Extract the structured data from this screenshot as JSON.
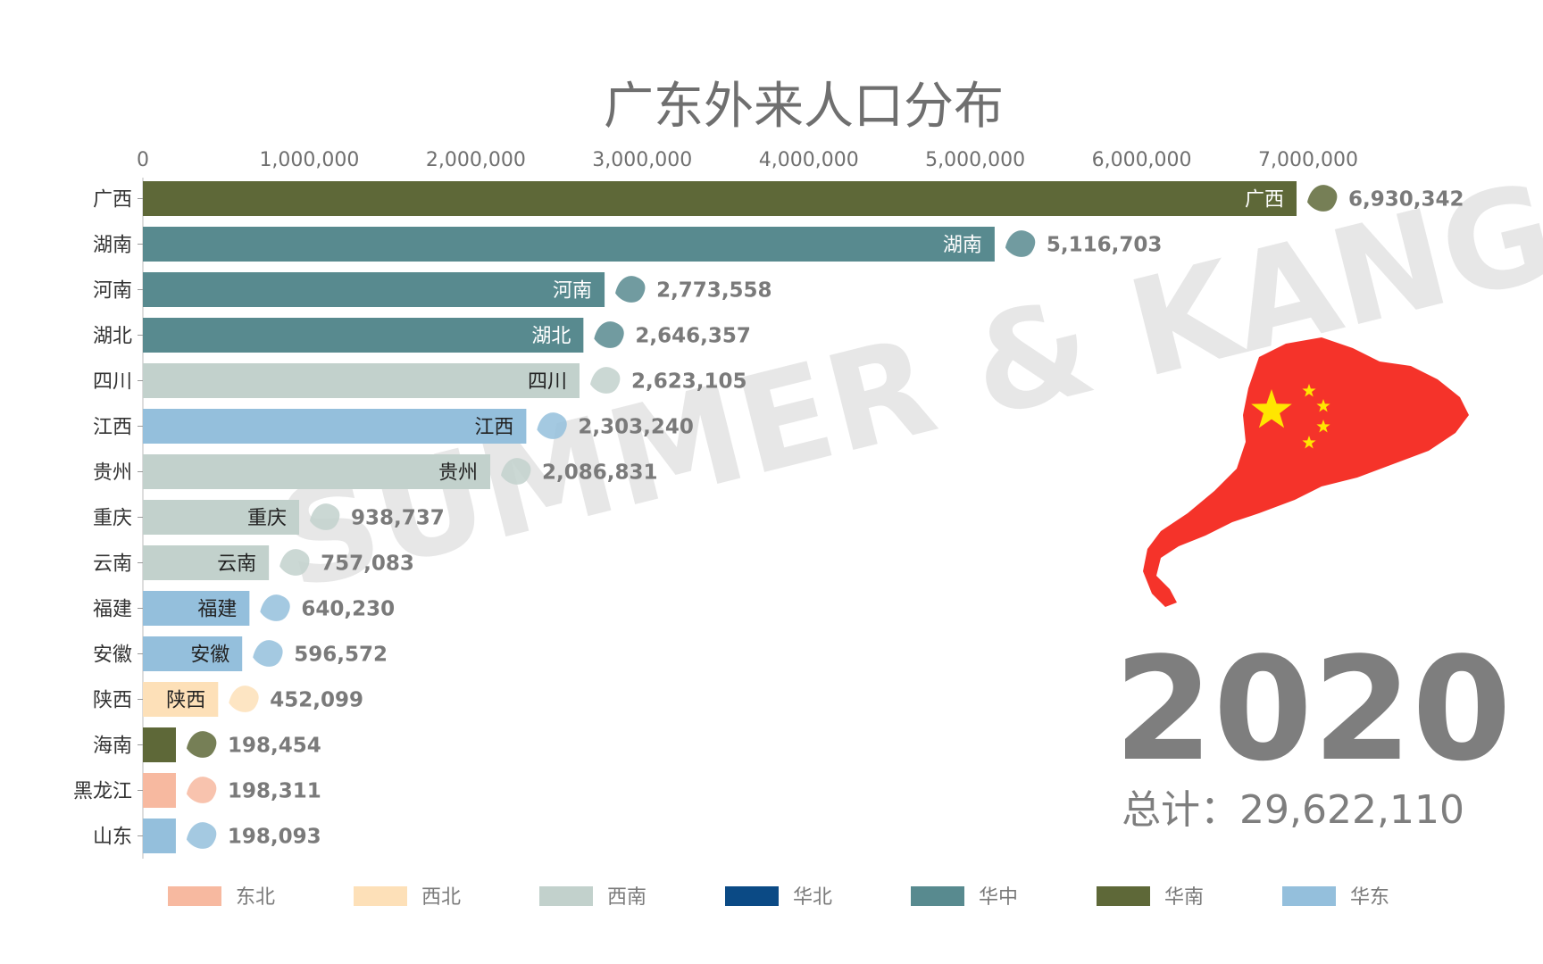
{
  "chart_data": {
    "type": "bar",
    "orientation": "horizontal",
    "title": "广东外来人口分布",
    "x_ticks": [
      "0",
      "1,000,000",
      "2,000,000",
      "3,000,000",
      "4,000,000",
      "5,000,000",
      "6,000,000",
      "7,000,000"
    ],
    "xlim": [
      0,
      7000000
    ],
    "grid": false,
    "categories": [
      "广西",
      "湖南",
      "河南",
      "湖北",
      "四川",
      "江西",
      "贵州",
      "重庆",
      "云南",
      "福建",
      "安徽",
      "陕西",
      "海南",
      "黑龙江",
      "山东"
    ],
    "values": [
      6930342,
      5116703,
      2773558,
      2646357,
      2623105,
      2303240,
      2086831,
      938737,
      757083,
      640230,
      596572,
      452099,
      198454,
      198311,
      198093
    ],
    "value_labels": [
      "6,930,342",
      "5,116,703",
      "2,773,558",
      "2,646,357",
      "2,623,105",
      "2,303,240",
      "2,086,831",
      "938,737",
      "757,083",
      "640,230",
      "596,572",
      "452,099",
      "198,454",
      "198,311",
      "198,093"
    ],
    "regions": [
      "华南",
      "华中",
      "华中",
      "华中",
      "西南",
      "华东",
      "西南",
      "西南",
      "西南",
      "华东",
      "华东",
      "西北",
      "华南",
      "东北",
      "华东"
    ],
    "legend": [
      {
        "name": "东北",
        "color": "#f7b9a0"
      },
      {
        "name": "西北",
        "color": "#fde0b8"
      },
      {
        "name": "西南",
        "color": "#c2d1cc"
      },
      {
        "name": "华北",
        "color": "#0b4a85"
      },
      {
        "name": "华中",
        "color": "#588a8f"
      },
      {
        "name": "华南",
        "color": "#5e6838"
      },
      {
        "name": "华东",
        "color": "#94bfdc"
      }
    ],
    "legend_position": "bottom"
  },
  "year": "2020",
  "total_text": "总计：29,622,110",
  "watermark": "SUMMER & KANG",
  "map": {
    "fill": "#f5332a",
    "star_color": "#ffe600"
  }
}
